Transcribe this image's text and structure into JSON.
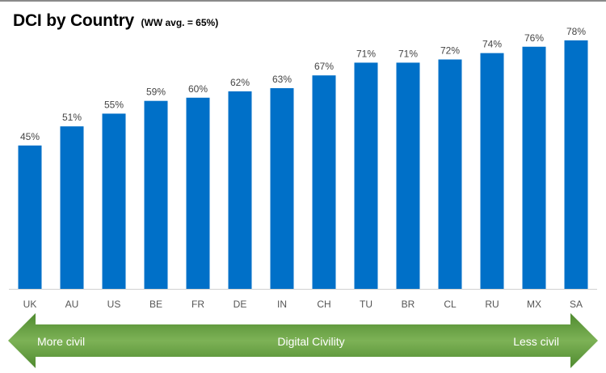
{
  "header": {
    "title": "DCI by Country",
    "subtitle": "(WW avg. = 65%)"
  },
  "chart_data": {
    "type": "bar",
    "categories": [
      "UK",
      "AU",
      "US",
      "BE",
      "FR",
      "DE",
      "IN",
      "CH",
      "TU",
      "BR",
      "CL",
      "RU",
      "MX",
      "SA"
    ],
    "values": [
      45,
      51,
      55,
      59,
      60,
      62,
      63,
      67,
      71,
      71,
      72,
      74,
      76,
      78
    ],
    "data_labels": [
      "45%",
      "51%",
      "55%",
      "59%",
      "60%",
      "62%",
      "63%",
      "67%",
      "71%",
      "71%",
      "72%",
      "74%",
      "76%",
      "78%"
    ],
    "ylim": [
      0,
      80
    ],
    "grid": false,
    "bar_color": "#0070C8"
  },
  "scale_arrow": {
    "left_label": "More civil",
    "center_label": "Digital Civility",
    "right_label": "Less civil",
    "colors": [
      "#4f8a2f",
      "#7db256"
    ]
  }
}
